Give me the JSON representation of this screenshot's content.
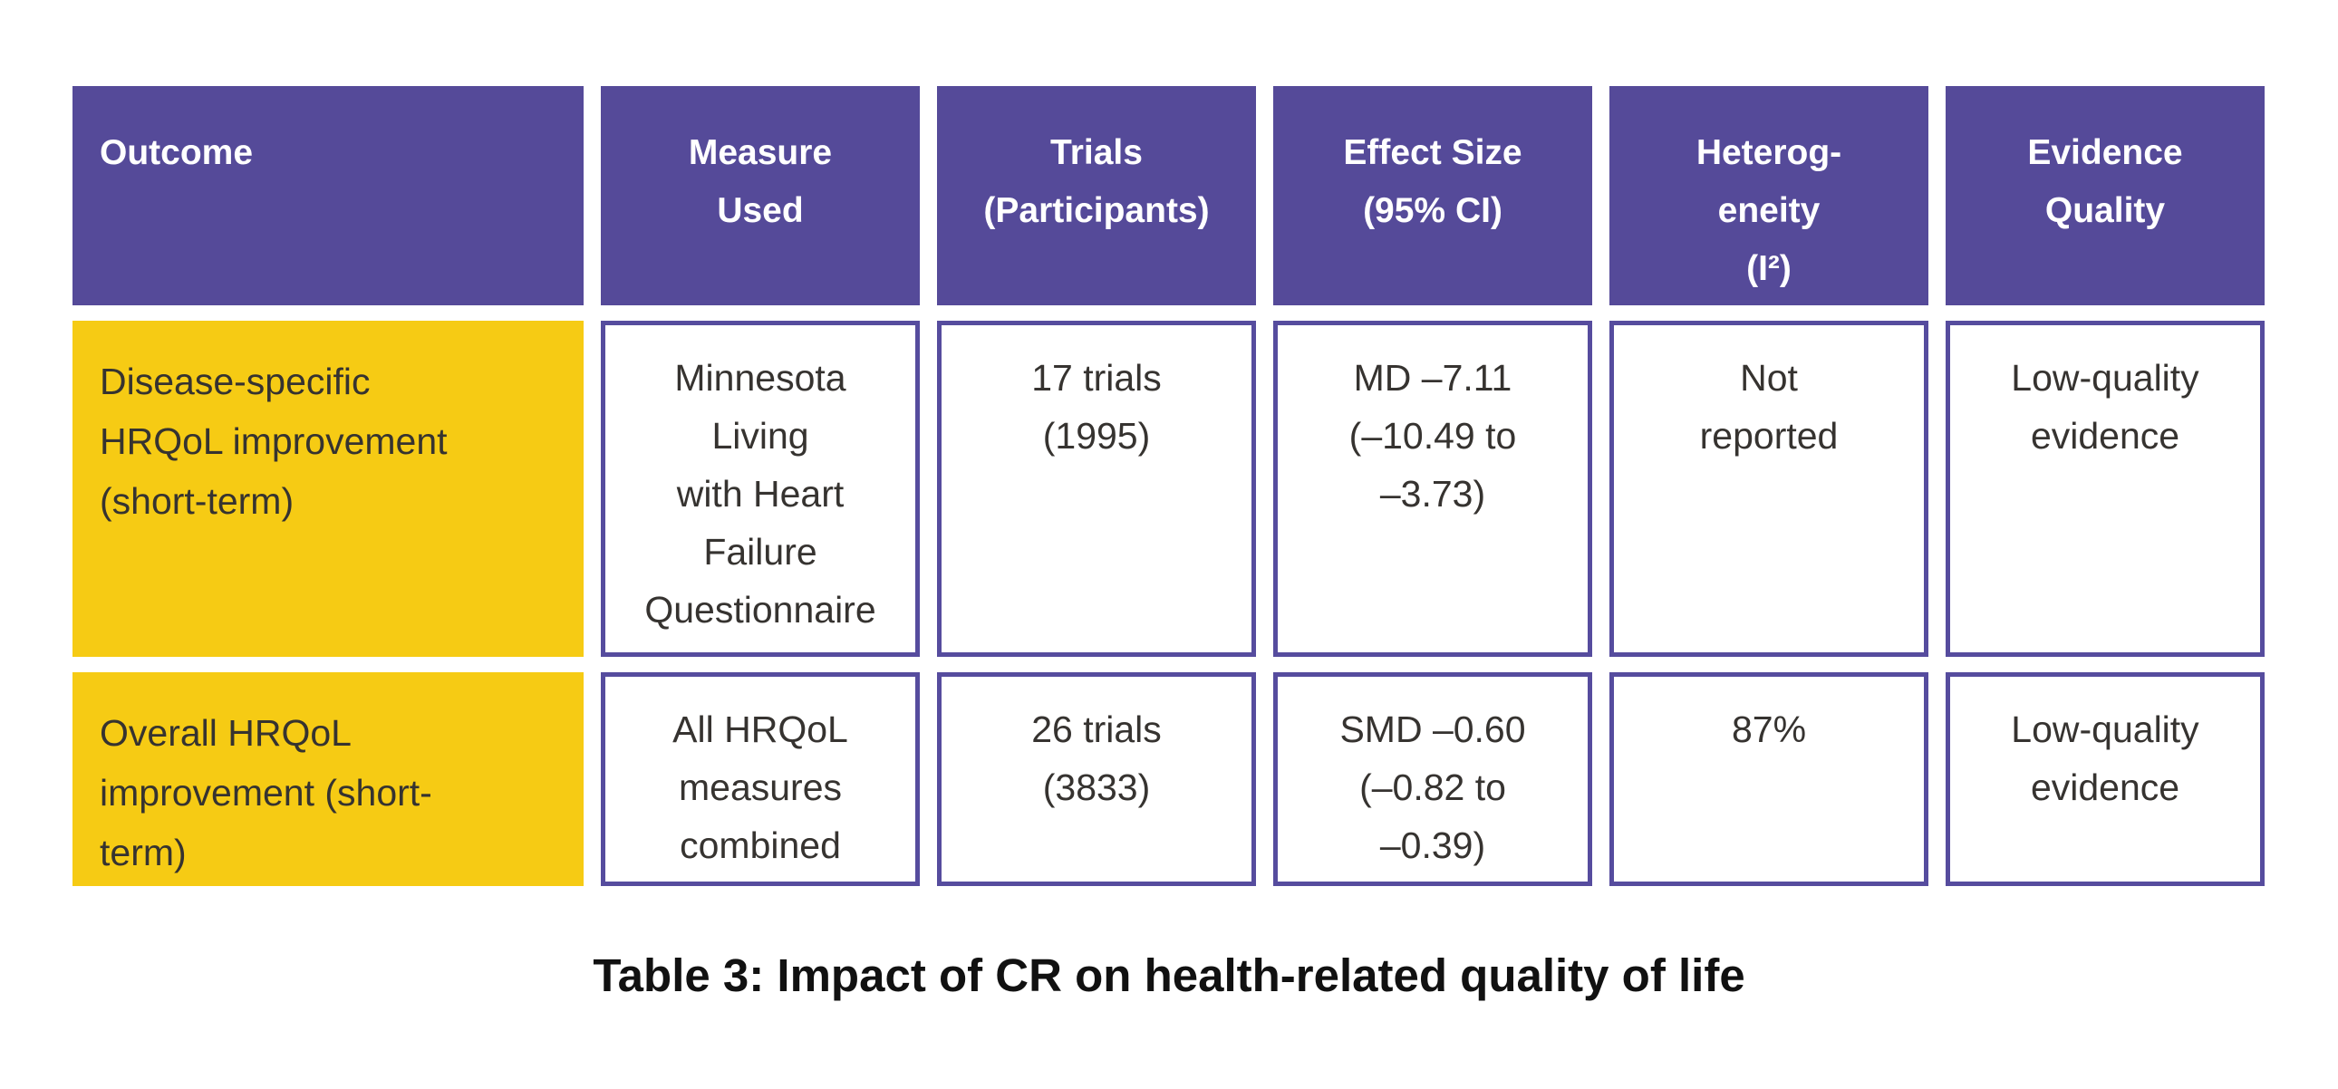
{
  "colors": {
    "header-purple": "#554a99",
    "border-purple": "#564c9e",
    "highlight-yellow": "#f6cb14",
    "header-text": "#ffffff",
    "body-text": "#363330",
    "caption-text": "#111111",
    "background": "#ffffff"
  },
  "table": {
    "headers": [
      {
        "key": "outcome",
        "label": "Outcome"
      },
      {
        "key": "measure",
        "label": "Measure\nUsed"
      },
      {
        "key": "trials",
        "label": "Trials\n(Participants)"
      },
      {
        "key": "effect_size",
        "label": "Effect Size\n(95% CI)"
      },
      {
        "key": "heterogeneity",
        "label": "Heterog-\neneity\n(I²)"
      },
      {
        "key": "evidence_quality",
        "label": "Evidence\nQuality"
      }
    ],
    "rows": [
      {
        "outcome": "Disease-specific\nHRQoL improvement\n(short-term)",
        "measure": "Minnesota\nLiving\nwith Heart\nFailure\nQuestionnaire",
        "trials": "17 trials\n(1995)",
        "effect_size": "MD –7.11\n(–10.49 to\n–3.73)",
        "heterogeneity": "Not\nreported",
        "evidence_quality": "Low-quality\nevidence"
      },
      {
        "outcome": "Overall HRQoL\nimprovement (short-\nterm)",
        "measure": "All HRQoL\nmeasures\ncombined",
        "trials": "26 trials\n(3833)",
        "effect_size": "SMD –0.60\n(–0.82 to\n–0.39)",
        "heterogeneity": "87%",
        "evidence_quality": "Low-quality\nevidence"
      }
    ],
    "caption": "Table 3: Impact of CR on health-related quality of life"
  }
}
